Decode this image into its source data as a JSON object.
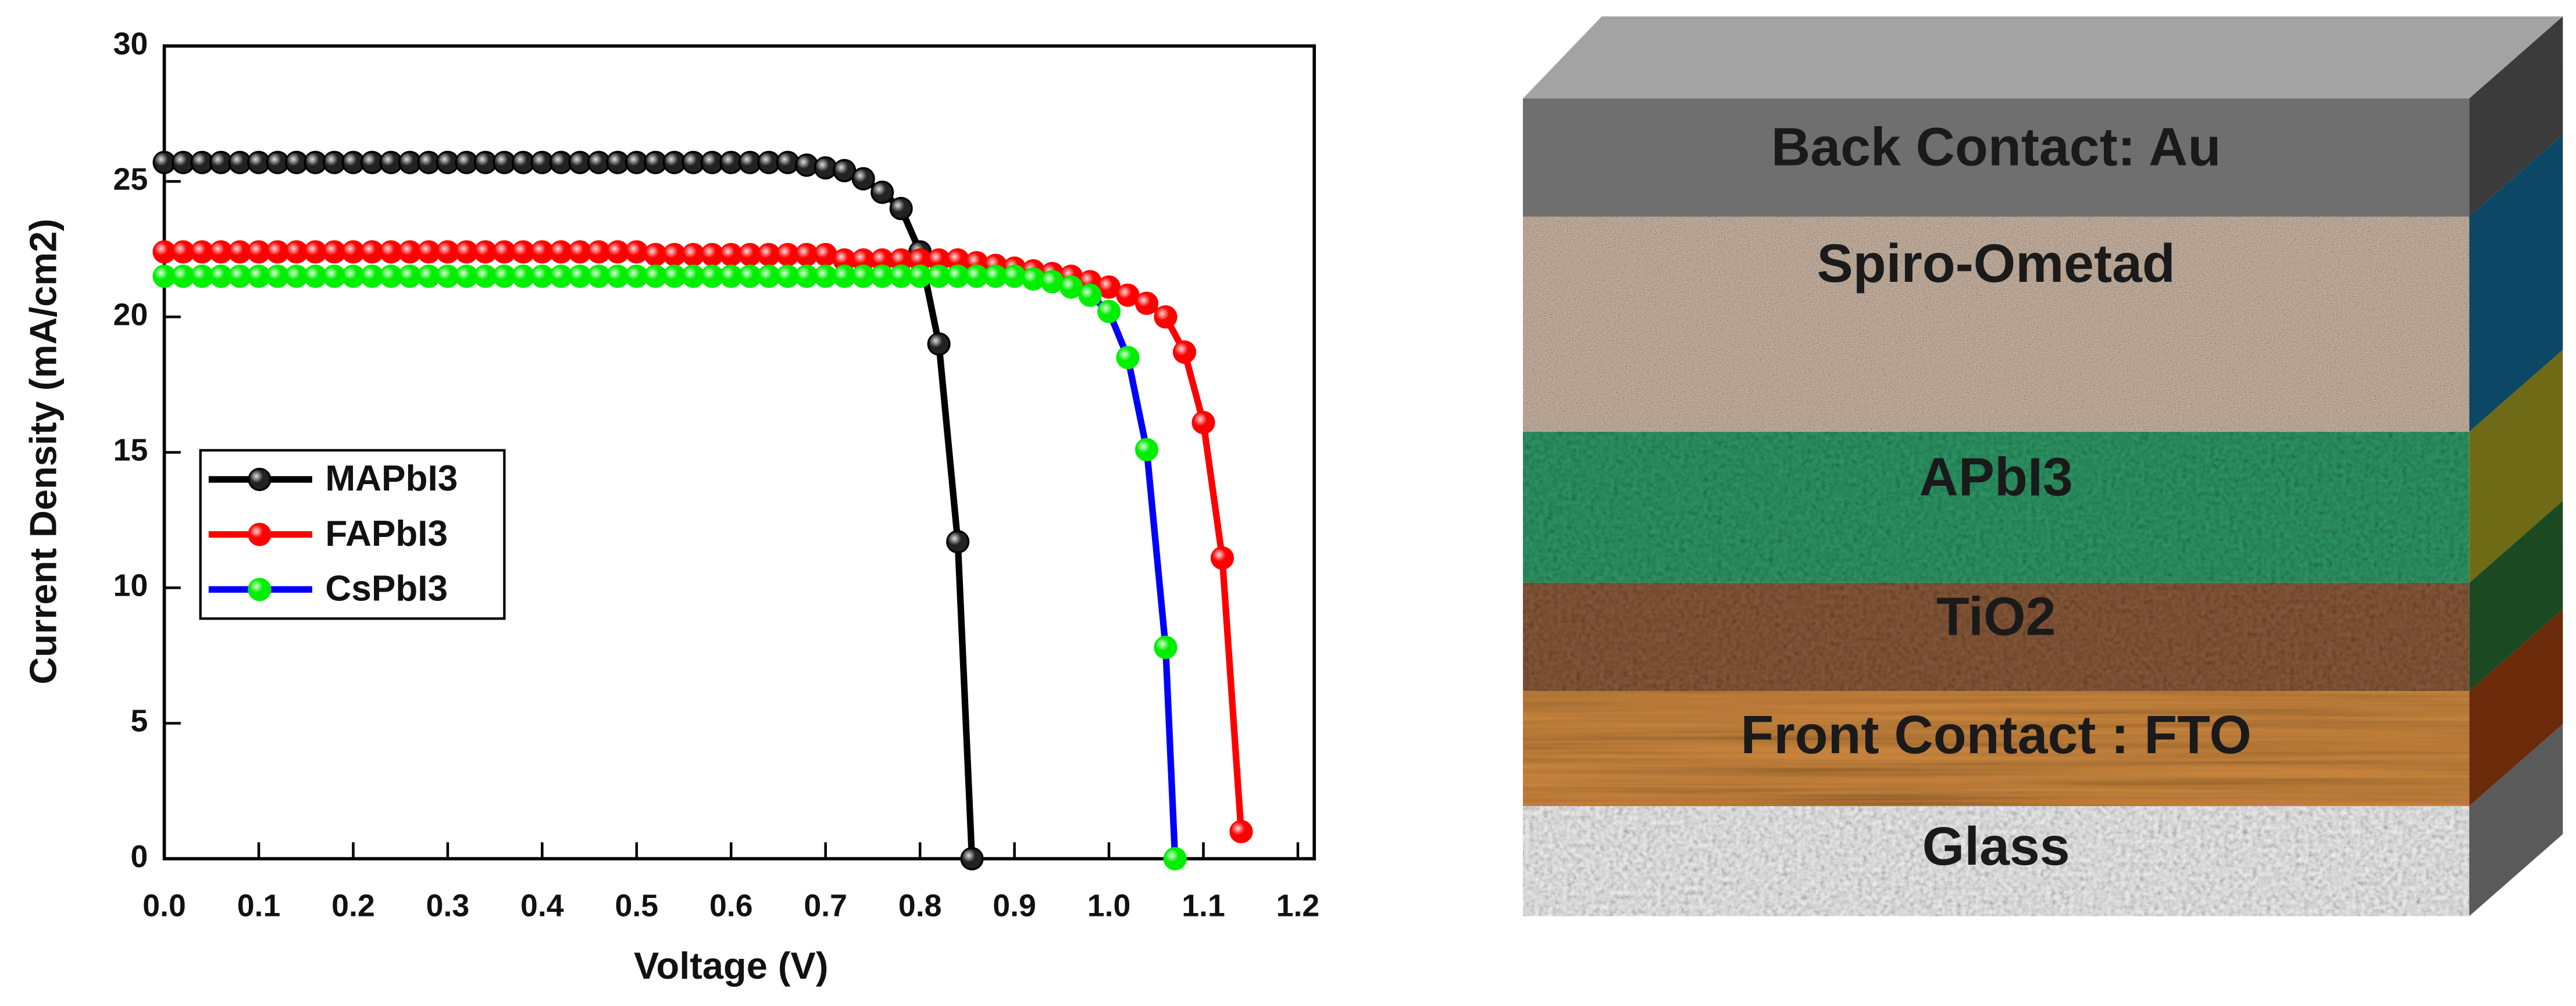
{
  "chart_data": {
    "type": "line",
    "xlabel": "Voltage (V)",
    "ylabel": "Current Density (mA/cm2)",
    "xlim": [
      0,
      1.2
    ],
    "ylim": [
      0,
      30
    ],
    "xticks": [
      {
        "value": 0,
        "label": "0.0"
      },
      0.1,
      0.2,
      0.3,
      0.4,
      0.5,
      0.6,
      0.7,
      0.8,
      0.9,
      {
        "value": 1,
        "label": "1.0"
      },
      1.1,
      1.2
    ],
    "yticks": [
      0,
      5,
      10,
      15,
      20,
      25,
      30
    ],
    "legend": "center left",
    "series": [
      {
        "name": "MAPbI3",
        "color": "#000000",
        "x": [
          0,
          0.02,
          0.04,
          0.06,
          0.08,
          0.1,
          0.12,
          0.14,
          0.16,
          0.18,
          0.2,
          0.22,
          0.24,
          0.26,
          0.28,
          0.3,
          0.32,
          0.34,
          0.36,
          0.38,
          0.4,
          0.42,
          0.44,
          0.46,
          0.48,
          0.5,
          0.52,
          0.54,
          0.56,
          0.58,
          0.6,
          0.62,
          0.64,
          0.66,
          0.68,
          0.7,
          0.72,
          0.74,
          0.76,
          0.78,
          0.8,
          0.82,
          0.84,
          0.855
        ],
        "values": [
          25.7,
          25.7,
          25.7,
          25.7,
          25.7,
          25.7,
          25.7,
          25.7,
          25.7,
          25.7,
          25.7,
          25.7,
          25.7,
          25.7,
          25.7,
          25.7,
          25.7,
          25.7,
          25.7,
          25.7,
          25.7,
          25.7,
          25.7,
          25.7,
          25.7,
          25.7,
          25.7,
          25.7,
          25.7,
          25.7,
          25.7,
          25.7,
          25.7,
          25.7,
          25.6,
          25.5,
          25.4,
          25.1,
          24.6,
          24.0,
          22.4,
          19.0,
          11.7,
          0
        ]
      },
      {
        "name": "FAPbI3",
        "color": "#ff0000",
        "x": [
          0,
          0.02,
          0.04,
          0.06,
          0.08,
          0.1,
          0.12,
          0.14,
          0.16,
          0.18,
          0.2,
          0.22,
          0.24,
          0.26,
          0.28,
          0.3,
          0.32,
          0.34,
          0.36,
          0.38,
          0.4,
          0.42,
          0.44,
          0.46,
          0.48,
          0.5,
          0.52,
          0.54,
          0.56,
          0.58,
          0.6,
          0.62,
          0.64,
          0.66,
          0.68,
          0.7,
          0.72,
          0.74,
          0.76,
          0.78,
          0.8,
          0.82,
          0.84,
          0.86,
          0.88,
          0.9,
          0.92,
          0.94,
          0.96,
          0.98,
          1.0,
          1.02,
          1.04,
          1.06,
          1.08,
          1.1,
          1.12,
          1.14
        ],
        "values": [
          22.4,
          22.4,
          22.4,
          22.4,
          22.4,
          22.4,
          22.4,
          22.4,
          22.4,
          22.4,
          22.4,
          22.4,
          22.4,
          22.4,
          22.4,
          22.4,
          22.4,
          22.4,
          22.4,
          22.4,
          22.4,
          22.4,
          22.4,
          22.4,
          22.4,
          22.4,
          22.3,
          22.3,
          22.3,
          22.3,
          22.3,
          22.3,
          22.3,
          22.3,
          22.3,
          22.3,
          22.1,
          22.1,
          22.1,
          22.1,
          22.1,
          22.1,
          22.1,
          22.0,
          21.9,
          21.8,
          21.7,
          21.6,
          21.5,
          21.3,
          21.1,
          20.8,
          20.5,
          20.0,
          18.7,
          16.1,
          11.1,
          1.0
        ]
      },
      {
        "name": "CsPbI3",
        "color": "#00ee00",
        "line_color": "#0000ff",
        "x": [
          0,
          0.02,
          0.04,
          0.06,
          0.08,
          0.1,
          0.12,
          0.14,
          0.16,
          0.18,
          0.2,
          0.22,
          0.24,
          0.26,
          0.28,
          0.3,
          0.32,
          0.34,
          0.36,
          0.38,
          0.4,
          0.42,
          0.44,
          0.46,
          0.48,
          0.5,
          0.52,
          0.54,
          0.56,
          0.58,
          0.6,
          0.62,
          0.64,
          0.66,
          0.68,
          0.7,
          0.72,
          0.74,
          0.76,
          0.78,
          0.8,
          0.82,
          0.84,
          0.86,
          0.88,
          0.9,
          0.92,
          0.94,
          0.96,
          0.98,
          1.0,
          1.02,
          1.04,
          1.06,
          1.07
        ],
        "values": [
          21.5,
          21.5,
          21.5,
          21.5,
          21.5,
          21.5,
          21.5,
          21.5,
          21.5,
          21.5,
          21.5,
          21.5,
          21.5,
          21.5,
          21.5,
          21.5,
          21.5,
          21.5,
          21.5,
          21.5,
          21.5,
          21.5,
          21.5,
          21.5,
          21.5,
          21.5,
          21.5,
          21.5,
          21.5,
          21.5,
          21.5,
          21.5,
          21.5,
          21.5,
          21.5,
          21.5,
          21.5,
          21.5,
          21.5,
          21.5,
          21.5,
          21.5,
          21.5,
          21.5,
          21.5,
          21.5,
          21.4,
          21.3,
          21.1,
          20.8,
          20.2,
          18.5,
          15.1,
          7.8,
          0
        ]
      }
    ]
  },
  "diagram": {
    "layers": [
      {
        "label": "Back Contact: Au"
      },
      {
        "label": "Spiro-Ometad"
      },
      {
        "label": "APbI3"
      },
      {
        "label": "TiO2"
      },
      {
        "label": "Front Contact : FTO"
      },
      {
        "label": "Glass"
      }
    ]
  }
}
